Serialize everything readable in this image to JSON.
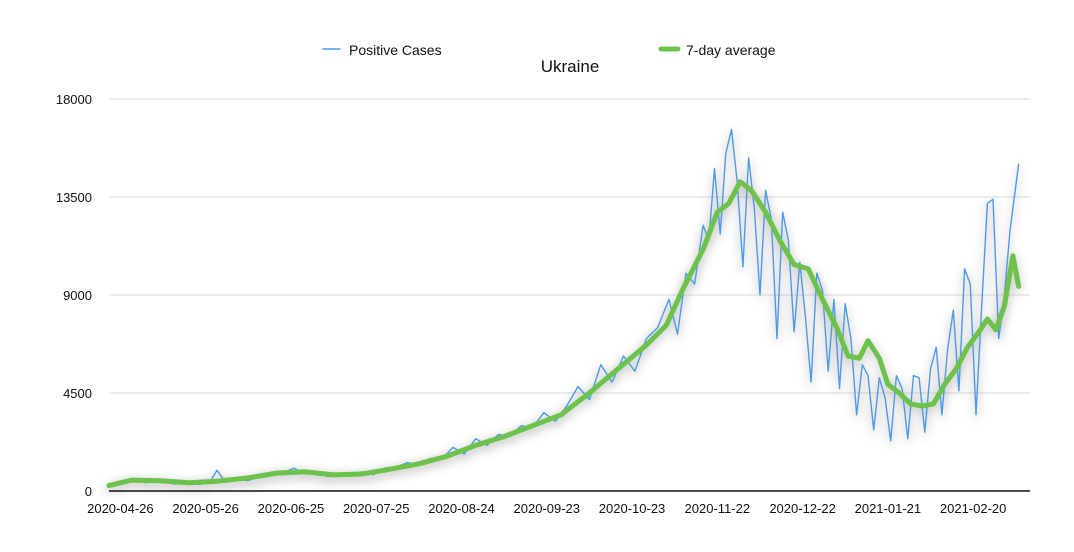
{
  "colors": {
    "cases": "#4c9be8",
    "average": "#6cc24a",
    "grid": "#d9d9d9",
    "axis": "#111111",
    "shadow": "#9a9a9a"
  },
  "chart_data": {
    "type": "line",
    "title": "Ukraine",
    "xlabel": "",
    "ylabel": "",
    "legend_position": "top",
    "grid": true,
    "ylim": [
      0,
      18000
    ],
    "x_start": "2020-04-22",
    "x_end": "2021-03-12",
    "yticks": [
      "0",
      "4500",
      "9000",
      "13500",
      "18000"
    ],
    "xticks": [
      "2020-04-26",
      "2020-05-26",
      "2020-06-25",
      "2020-07-25",
      "2020-08-24",
      "2020-09-23",
      "2020-10-23",
      "2020-11-22",
      "2020-12-22",
      "2021-01-21",
      "2021-02-20"
    ],
    "series": [
      {
        "name": "Positive Cases",
        "style": "thin",
        "points": [
          [
            "2020-04-22",
            250
          ],
          [
            "2020-04-26",
            420
          ],
          [
            "2020-05-01",
            500
          ],
          [
            "2020-05-05",
            380
          ],
          [
            "2020-05-10",
            450
          ],
          [
            "2020-05-15",
            320
          ],
          [
            "2020-05-20",
            380
          ],
          [
            "2020-05-24",
            300
          ],
          [
            "2020-05-28",
            520
          ],
          [
            "2020-05-30",
            950
          ],
          [
            "2020-06-02",
            400
          ],
          [
            "2020-06-06",
            520
          ],
          [
            "2020-06-10",
            480
          ],
          [
            "2020-06-14",
            650
          ],
          [
            "2020-06-18",
            800
          ],
          [
            "2020-06-22",
            820
          ],
          [
            "2020-06-26",
            1050
          ],
          [
            "2020-06-30",
            780
          ],
          [
            "2020-07-04",
            900
          ],
          [
            "2020-07-08",
            650
          ],
          [
            "2020-07-12",
            820
          ],
          [
            "2020-07-16",
            700
          ],
          [
            "2020-07-20",
            880
          ],
          [
            "2020-07-24",
            750
          ],
          [
            "2020-07-28",
            1050
          ],
          [
            "2020-08-01",
            1100
          ],
          [
            "2020-08-05",
            1300
          ],
          [
            "2020-08-09",
            1200
          ],
          [
            "2020-08-13",
            1500
          ],
          [
            "2020-08-17",
            1450
          ],
          [
            "2020-08-21",
            2000
          ],
          [
            "2020-08-25",
            1700
          ],
          [
            "2020-08-29",
            2400
          ],
          [
            "2020-09-02",
            2100
          ],
          [
            "2020-09-06",
            2600
          ],
          [
            "2020-09-10",
            2500
          ],
          [
            "2020-09-14",
            3000
          ],
          [
            "2020-09-18",
            2900
          ],
          [
            "2020-09-22",
            3600
          ],
          [
            "2020-09-26",
            3200
          ],
          [
            "2020-09-30",
            3900
          ],
          [
            "2020-10-04",
            4800
          ],
          [
            "2020-10-08",
            4200
          ],
          [
            "2020-10-12",
            5800
          ],
          [
            "2020-10-16",
            5000
          ],
          [
            "2020-10-20",
            6200
          ],
          [
            "2020-10-24",
            5500
          ],
          [
            "2020-10-28",
            7000
          ],
          [
            "2020-11-01",
            7500
          ],
          [
            "2020-11-05",
            8800
          ],
          [
            "2020-11-08",
            7200
          ],
          [
            "2020-11-11",
            10000
          ],
          [
            "2020-11-14",
            9500
          ],
          [
            "2020-11-17",
            12200
          ],
          [
            "2020-11-19",
            11500
          ],
          [
            "2020-11-21",
            14800
          ],
          [
            "2020-11-23",
            11800
          ],
          [
            "2020-11-25",
            15500
          ],
          [
            "2020-11-27",
            16600
          ],
          [
            "2020-11-29",
            14200
          ],
          [
            "2020-12-01",
            10300
          ],
          [
            "2020-12-03",
            15300
          ],
          [
            "2020-12-05",
            13000
          ],
          [
            "2020-12-07",
            9000
          ],
          [
            "2020-12-09",
            13800
          ],
          [
            "2020-12-11",
            12500
          ],
          [
            "2020-12-13",
            7000
          ],
          [
            "2020-12-15",
            12800
          ],
          [
            "2020-12-17",
            11500
          ],
          [
            "2020-12-19",
            7300
          ],
          [
            "2020-12-21",
            10500
          ],
          [
            "2020-12-23",
            8000
          ],
          [
            "2020-12-25",
            5000
          ],
          [
            "2020-12-27",
            10000
          ],
          [
            "2020-12-29",
            9200
          ],
          [
            "2020-12-31",
            5500
          ],
          [
            "2021-01-02",
            8800
          ],
          [
            "2021-01-04",
            4700
          ],
          [
            "2021-01-06",
            8600
          ],
          [
            "2021-01-08",
            7000
          ],
          [
            "2021-01-10",
            3500
          ],
          [
            "2021-01-12",
            5800
          ],
          [
            "2021-01-14",
            5300
          ],
          [
            "2021-01-16",
            2800
          ],
          [
            "2021-01-18",
            5200
          ],
          [
            "2021-01-20",
            4300
          ],
          [
            "2021-01-22",
            2300
          ],
          [
            "2021-01-24",
            5300
          ],
          [
            "2021-01-26",
            4700
          ],
          [
            "2021-01-28",
            2400
          ],
          [
            "2021-01-30",
            5300
          ],
          [
            "2021-02-01",
            5200
          ],
          [
            "2021-02-03",
            2700
          ],
          [
            "2021-02-05",
            5600
          ],
          [
            "2021-02-07",
            6600
          ],
          [
            "2021-02-09",
            3500
          ],
          [
            "2021-02-11",
            6500
          ],
          [
            "2021-02-13",
            8300
          ],
          [
            "2021-02-15",
            4600
          ],
          [
            "2021-02-17",
            10200
          ],
          [
            "2021-02-19",
            9500
          ],
          [
            "2021-02-21",
            3500
          ],
          [
            "2021-02-23",
            8500
          ],
          [
            "2021-02-25",
            13200
          ],
          [
            "2021-02-27",
            13400
          ],
          [
            "2021-03-01",
            7000
          ],
          [
            "2021-03-03",
            9000
          ],
          [
            "2021-03-05",
            12000
          ],
          [
            "2021-03-08",
            15000
          ]
        ]
      },
      {
        "name": "7-day average",
        "style": "thick",
        "points": [
          [
            "2020-04-22",
            250
          ],
          [
            "2020-04-30",
            500
          ],
          [
            "2020-05-10",
            470
          ],
          [
            "2020-05-20",
            380
          ],
          [
            "2020-05-30",
            450
          ],
          [
            "2020-06-10",
            600
          ],
          [
            "2020-06-20",
            820
          ],
          [
            "2020-06-30",
            880
          ],
          [
            "2020-07-10",
            740
          ],
          [
            "2020-07-20",
            780
          ],
          [
            "2020-07-30",
            1000
          ],
          [
            "2020-08-09",
            1250
          ],
          [
            "2020-08-19",
            1600
          ],
          [
            "2020-08-29",
            2100
          ],
          [
            "2020-09-08",
            2500
          ],
          [
            "2020-09-18",
            3000
          ],
          [
            "2020-09-28",
            3500
          ],
          [
            "2020-10-08",
            4500
          ],
          [
            "2020-10-18",
            5600
          ],
          [
            "2020-10-28",
            6700
          ],
          [
            "2020-11-04",
            7600
          ],
          [
            "2020-11-10",
            9300
          ],
          [
            "2020-11-17",
            11100
          ],
          [
            "2020-11-22",
            12800
          ],
          [
            "2020-11-26",
            13200
          ],
          [
            "2020-11-30",
            14200
          ],
          [
            "2020-12-04",
            13800
          ],
          [
            "2020-12-09",
            12800
          ],
          [
            "2020-12-14",
            11500
          ],
          [
            "2020-12-19",
            10400
          ],
          [
            "2020-12-24",
            10200
          ],
          [
            "2020-12-29",
            8800
          ],
          [
            "2021-01-03",
            7500
          ],
          [
            "2021-01-07",
            6200
          ],
          [
            "2021-01-11",
            6100
          ],
          [
            "2021-01-14",
            6900
          ],
          [
            "2021-01-18",
            6100
          ],
          [
            "2021-01-21",
            4900
          ],
          [
            "2021-01-25",
            4500
          ],
          [
            "2021-01-29",
            4000
          ],
          [
            "2021-02-02",
            3900
          ],
          [
            "2021-02-06",
            4000
          ],
          [
            "2021-02-10",
            4900
          ],
          [
            "2021-02-14",
            5600
          ],
          [
            "2021-02-18",
            6600
          ],
          [
            "2021-02-22",
            7300
          ],
          [
            "2021-02-25",
            7900
          ],
          [
            "2021-02-28",
            7400
          ],
          [
            "2021-03-03",
            8500
          ],
          [
            "2021-03-06",
            10800
          ],
          [
            "2021-03-08",
            9400
          ]
        ]
      }
    ]
  }
}
